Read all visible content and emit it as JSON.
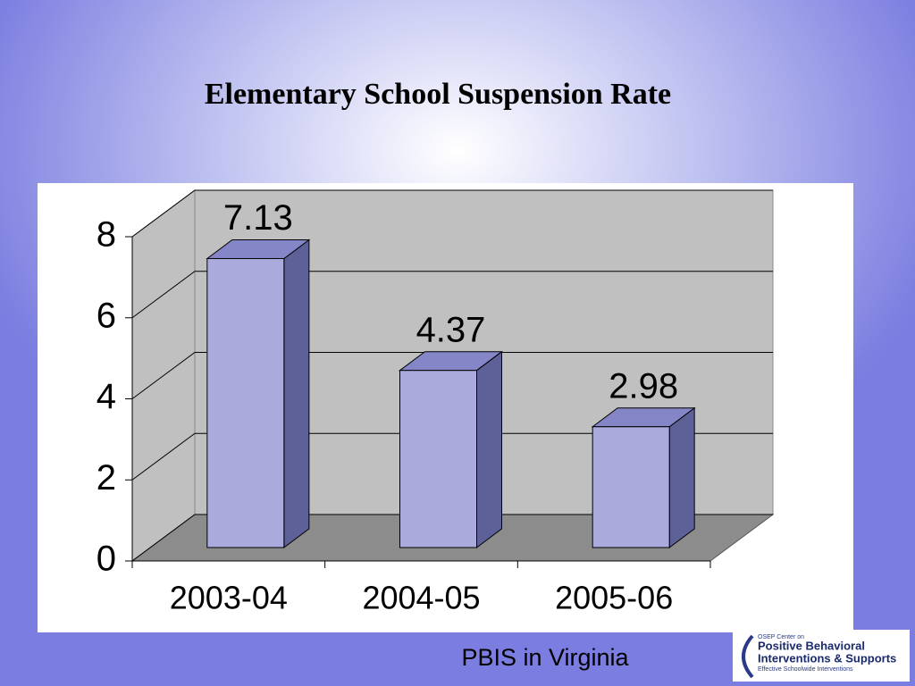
{
  "chart_data": {
    "type": "bar3d",
    "title": "Elementary School Suspension Rate",
    "categories": [
      "2003-04",
      "2004-05",
      "2005-06"
    ],
    "values": [
      7.13,
      4.37,
      2.98
    ],
    "color": "#aaaadd",
    "ylim": [
      0,
      8
    ],
    "yticks": [
      0,
      2,
      4,
      6,
      8
    ],
    "grid": true
  },
  "footer": "PBIS in Virginia",
  "logo": {
    "line1": "OSEP Center on",
    "line2": "Positive Behavioral",
    "line3": "Interventions & Supports",
    "line4": "Effective Schoolwide Interventions"
  }
}
